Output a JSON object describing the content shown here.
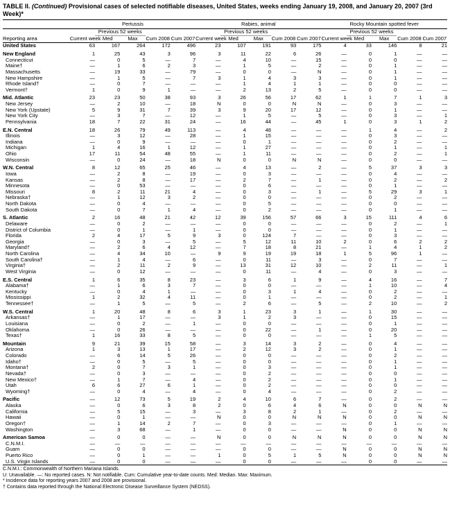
{
  "title_prefix": "TABLE II. ",
  "title_cont": "(Continued)",
  "title_rest": " Provisional cases of selected notifiable diseases, United States, weeks ending January 19, 2008, and January 20, 2007 (3rd Week)*",
  "diseases": [
    "Pertussis",
    "Rabies, animal",
    "Rocky Mountain spotted fever"
  ],
  "col_headers": {
    "area": "Reporting area",
    "current": "Current week",
    "previous": "Previous 52 weeks",
    "med": "Med",
    "max": "Max",
    "cum08": "Cum 2008",
    "cum07": "Cum 2007"
  },
  "footnotes": [
    "C.N.M.I.: Commonwealth of Northern Mariana Islands.",
    "U: Unavailable.     —: No reported cases.    N: Not notifiable.    Cum: Cumulative year-to-date counts.    Med: Median.    Max: Maximum.",
    "* Incidence data for reporting years 2007 and 2008 are provisional.",
    "† Contains data reported through the National Electronic Disease Surveillance System (NEDSS)."
  ],
  "dash": "—",
  "rows": [
    {
      "region": true,
      "area": "United States",
      "c": [
        "63",
        "167",
        "264",
        "172",
        "496",
        "23",
        "107",
        "191",
        "93",
        "175",
        "4",
        "33",
        "146",
        "8",
        "21"
      ]
    },
    {
      "region": true,
      "area": "New England",
      "c": [
        "1",
        "25",
        "43",
        "3",
        "96",
        "3",
        "11",
        "22",
        "6",
        "26",
        "—",
        "0",
        "1",
        "—",
        "—"
      ]
    },
    {
      "area": "Connecticut",
      "c": [
        "—",
        "0",
        "5",
        "—",
        "7",
        "—",
        "4",
        "10",
        "—",
        "15",
        "—",
        "0",
        "0",
        "—",
        "—"
      ]
    },
    {
      "area": "Maine†",
      "c": [
        "—",
        "1",
        "6",
        "2",
        "3",
        "—",
        "1",
        "5",
        "—",
        "2",
        "—",
        "0",
        "1",
        "—",
        "—"
      ]
    },
    {
      "area": "Massachusetts",
      "c": [
        "—",
        "19",
        "33",
        "—",
        "79",
        "—",
        "0",
        "0",
        "—",
        "N",
        "—",
        "0",
        "1",
        "—",
        "—"
      ]
    },
    {
      "area": "New Hampshire",
      "c": [
        "—",
        "1",
        "5",
        "—",
        "7",
        "3",
        "1",
        "4",
        "3",
        "3",
        "—",
        "0",
        "1",
        "—",
        "—"
      ]
    },
    {
      "area": "Rhode Island†",
      "c": [
        "—",
        "0",
        "7",
        "—",
        "—",
        "—",
        "1",
        "4",
        "1",
        "1",
        "—",
        "0",
        "0",
        "—",
        "—"
      ]
    },
    {
      "area": "Vermont†",
      "c": [
        "1",
        "0",
        "9",
        "1",
        "—",
        "—",
        "2",
        "13",
        "2",
        "5",
        "—",
        "0",
        "0",
        "—",
        "—"
      ]
    },
    {
      "region": true,
      "area": "Mid. Atlantic",
      "c": [
        "23",
        "23",
        "50",
        "38",
        "93",
        "3",
        "26",
        "56",
        "17",
        "62",
        "1",
        "1",
        "7",
        "1",
        "3"
      ]
    },
    {
      "area": "New Jersey",
      "c": [
        "—",
        "2",
        "10",
        "—",
        "18",
        "N",
        "0",
        "0",
        "N",
        "N",
        "—",
        "0",
        "3",
        "—",
        "—"
      ]
    },
    {
      "area": "New York (Upstate)",
      "c": [
        "5",
        "9",
        "31",
        "7",
        "39",
        "3",
        "9",
        "20",
        "17",
        "12",
        "—",
        "0",
        "1",
        "—",
        "—"
      ]
    },
    {
      "area": "New York City",
      "c": [
        "—",
        "3",
        "7",
        "—",
        "12",
        "—",
        "1",
        "5",
        "—",
        "5",
        "—",
        "0",
        "3",
        "—",
        "1"
      ]
    },
    {
      "area": "Pennsylvania",
      "c": [
        "18",
        "7",
        "22",
        "31",
        "24",
        "—",
        "16",
        "44",
        "—",
        "45",
        "1",
        "0",
        "3",
        "1",
        "2"
      ]
    },
    {
      "region": true,
      "area": "E.N. Central",
      "c": [
        "18",
        "26",
        "79",
        "49",
        "113",
        "—",
        "4",
        "48",
        "—",
        "—",
        "—",
        "1",
        "4",
        "—",
        "2"
      ]
    },
    {
      "area": "Illinois",
      "c": [
        "—",
        "3",
        "12",
        "—",
        "28",
        "—",
        "1",
        "15",
        "—",
        "—",
        "—",
        "0",
        "3",
        "—",
        "—"
      ]
    },
    {
      "area": "Indiana",
      "c": [
        "—",
        "0",
        "9",
        "—",
        "—",
        "—",
        "0",
        "1",
        "—",
        "—",
        "—",
        "0",
        "2",
        "—",
        "—"
      ]
    },
    {
      "area": "Michigan",
      "c": [
        "1",
        "4",
        "16",
        "1",
        "12",
        "—",
        "1",
        "27",
        "—",
        "—",
        "—",
        "0",
        "1",
        "—",
        "1"
      ]
    },
    {
      "area": "Ohio",
      "c": [
        "17",
        "11",
        "54",
        "48",
        "55",
        "—",
        "1",
        "11",
        "—",
        "—",
        "—",
        "0",
        "2",
        "—",
        "1"
      ]
    },
    {
      "area": "Wisconsin",
      "c": [
        "—",
        "0",
        "24",
        "—",
        "18",
        "N",
        "0",
        "0",
        "N",
        "N",
        "—",
        "0",
        "0",
        "—",
        "—"
      ]
    },
    {
      "region": true,
      "area": "W.N. Central",
      "c": [
        "8",
        "12",
        "65",
        "25",
        "46",
        "—",
        "4",
        "13",
        "—",
        "2",
        "—",
        "5",
        "37",
        "3",
        "3"
      ]
    },
    {
      "area": "Iowa",
      "c": [
        "—",
        "2",
        "8",
        "—",
        "19",
        "—",
        "0",
        "3",
        "—",
        "—",
        "—",
        "0",
        "4",
        "—",
        "—"
      ]
    },
    {
      "area": "Kansas",
      "c": [
        "—",
        "2",
        "8",
        "—",
        "17",
        "—",
        "2",
        "7",
        "—",
        "1",
        "—",
        "0",
        "2",
        "—",
        "2"
      ]
    },
    {
      "area": "Minnesota",
      "c": [
        "—",
        "0",
        "53",
        "—",
        "—",
        "—",
        "0",
        "6",
        "—",
        "—",
        "—",
        "0",
        "1",
        "—",
        "—"
      ]
    },
    {
      "area": "Missouri",
      "c": [
        "8",
        "2",
        "11",
        "21",
        "4",
        "—",
        "0",
        "3",
        "—",
        "1",
        "—",
        "5",
        "29",
        "3",
        "1"
      ]
    },
    {
      "area": "Nebraska†",
      "c": [
        "—",
        "1",
        "12",
        "3",
        "2",
        "—",
        "0",
        "0",
        "—",
        "—",
        "—",
        "0",
        "2",
        "—",
        "—"
      ]
    },
    {
      "area": "North Dakota",
      "c": [
        "—",
        "0",
        "4",
        "—",
        "—",
        "—",
        "0",
        "5",
        "—",
        "—",
        "—",
        "0",
        "0",
        "—",
        "—"
      ]
    },
    {
      "area": "South Dakota",
      "c": [
        "—",
        "0",
        "7",
        "1",
        "4",
        "—",
        "0",
        "2",
        "—",
        "—",
        "—",
        "0",
        "1",
        "—",
        "—"
      ]
    },
    {
      "region": true,
      "area": "S. Atlantic",
      "c": [
        "2",
        "16",
        "48",
        "21",
        "42",
        "12",
        "39",
        "156",
        "57",
        "66",
        "3",
        "15",
        "111",
        "4",
        "6"
      ]
    },
    {
      "area": "Delaware",
      "c": [
        "—",
        "0",
        "2",
        "—",
        "—",
        "—",
        "0",
        "0",
        "—",
        "—",
        "—",
        "0",
        "2",
        "—",
        "1"
      ]
    },
    {
      "area": "District of Columbia",
      "c": [
        "—",
        "0",
        "1",
        "—",
        "1",
        "—",
        "0",
        "0",
        "—",
        "—",
        "—",
        "0",
        "1",
        "—",
        "—"
      ]
    },
    {
      "area": "Florida",
      "c": [
        "2",
        "4",
        "17",
        "5",
        "9",
        "3",
        "0",
        "124",
        "7",
        "—",
        "—",
        "0",
        "3",
        "—",
        "—"
      ]
    },
    {
      "area": "Georgia",
      "c": [
        "—",
        "0",
        "3",
        "—",
        "5",
        "—",
        "5",
        "12",
        "11",
        "10",
        "2",
        "0",
        "6",
        "2",
        "2"
      ]
    },
    {
      "area": "Maryland†",
      "c": [
        "—",
        "2",
        "6",
        "4",
        "12",
        "—",
        "7",
        "18",
        "8",
        "21",
        "—",
        "1",
        "4",
        "1",
        "2"
      ]
    },
    {
      "area": "North Carolina",
      "c": [
        "—",
        "4",
        "34",
        "10",
        "—",
        "9",
        "9",
        "19",
        "19",
        "18",
        "1",
        "5",
        "96",
        "1",
        "—"
      ]
    },
    {
      "area": "South Carolina†",
      "c": [
        "—",
        "1",
        "4",
        "—",
        "6",
        "—",
        "0",
        "11",
        "—",
        "3",
        "—",
        "0",
        "7",
        "—",
        "—"
      ]
    },
    {
      "area": "Virginia†",
      "c": [
        "—",
        "2",
        "11",
        "2",
        "9",
        "—",
        "13",
        "31",
        "12",
        "10",
        "—",
        "2",
        "11",
        "—",
        "1"
      ]
    },
    {
      "area": "West Virginia",
      "c": [
        "—",
        "0",
        "12",
        "—",
        "—",
        "—",
        "0",
        "11",
        "—",
        "4",
        "—",
        "0",
        "3",
        "—",
        "—"
      ]
    },
    {
      "region": true,
      "area": "E.S. Central",
      "c": [
        "1",
        "6",
        "35",
        "8",
        "23",
        "—",
        "3",
        "6",
        "1",
        "9",
        "—",
        "4",
        "16",
        "—",
        "7"
      ]
    },
    {
      "area": "Alabama†",
      "c": [
        "—",
        "1",
        "6",
        "3",
        "7",
        "—",
        "0",
        "0",
        "—",
        "—",
        "—",
        "1",
        "10",
        "—",
        "4"
      ]
    },
    {
      "area": "Kentucky",
      "c": [
        "—",
        "0",
        "4",
        "1",
        "—",
        "—",
        "0",
        "3",
        "1",
        "4",
        "—",
        "0",
        "2",
        "—",
        "—"
      ]
    },
    {
      "area": "Mississippi",
      "c": [
        "1",
        "2",
        "32",
        "4",
        "11",
        "—",
        "0",
        "1",
        "—",
        "—",
        "—",
        "0",
        "2",
        "—",
        "1"
      ]
    },
    {
      "area": "Tennessee†",
      "c": [
        "—",
        "1",
        "5",
        "—",
        "5",
        "—",
        "2",
        "6",
        "—",
        "5",
        "—",
        "2",
        "10",
        "—",
        "2"
      ]
    },
    {
      "region": true,
      "area": "W.S. Central",
      "c": [
        "1",
        "20",
        "48",
        "8",
        "6",
        "3",
        "1",
        "23",
        "3",
        "1",
        "—",
        "1",
        "30",
        "—",
        "—"
      ]
    },
    {
      "area": "Arkansas†",
      "c": [
        "—",
        "1",
        "17",
        "—",
        "—",
        "3",
        "1",
        "2",
        "3",
        "—",
        "—",
        "0",
        "15",
        "—",
        "—"
      ]
    },
    {
      "area": "Louisiana",
      "c": [
        "—",
        "0",
        "2",
        "—",
        "1",
        "—",
        "0",
        "0",
        "—",
        "—",
        "—",
        "0",
        "1",
        "—",
        "—"
      ]
    },
    {
      "area": "Oklahoma",
      "c": [
        "—",
        "0",
        "26",
        "—",
        "—",
        "—",
        "0",
        "22",
        "—",
        "1",
        "—",
        "0",
        "20",
        "—",
        "—"
      ]
    },
    {
      "area": "Texas†",
      "c": [
        "1",
        "16",
        "33",
        "8",
        "5",
        "—",
        "0",
        "0",
        "—",
        "—",
        "—",
        "1",
        "5",
        "—",
        "—"
      ]
    },
    {
      "region": true,
      "area": "Mountain",
      "c": [
        "9",
        "21",
        "39",
        "15",
        "58",
        "—",
        "3",
        "14",
        "3",
        "2",
        "—",
        "0",
        "4",
        "—",
        "—"
      ]
    },
    {
      "area": "Arizona",
      "c": [
        "1",
        "3",
        "13",
        "1",
        "17",
        "—",
        "2",
        "12",
        "3",
        "2",
        "—",
        "0",
        "1",
        "—",
        "—"
      ]
    },
    {
      "area": "Colorado",
      "c": [
        "—",
        "6",
        "14",
        "5",
        "26",
        "—",
        "0",
        "0",
        "—",
        "—",
        "—",
        "0",
        "2",
        "—",
        "—"
      ]
    },
    {
      "area": "Idaho†",
      "c": [
        "—",
        "0",
        "5",
        "—",
        "5",
        "—",
        "0",
        "0",
        "—",
        "—",
        "—",
        "0",
        "1",
        "—",
        "—"
      ]
    },
    {
      "area": "Montana†",
      "c": [
        "2",
        "0",
        "7",
        "3",
        "1",
        "—",
        "0",
        "3",
        "—",
        "—",
        "—",
        "0",
        "1",
        "—",
        "—"
      ]
    },
    {
      "area": "Nevada†",
      "c": [
        "—",
        "0",
        "3",
        "—",
        "—",
        "—",
        "0",
        "2",
        "—",
        "—",
        "—",
        "0",
        "0",
        "—",
        "—"
      ]
    },
    {
      "area": "New Mexico†",
      "c": [
        "—",
        "1",
        "7",
        "—",
        "4",
        "—",
        "0",
        "2",
        "—",
        "—",
        "—",
        "0",
        "1",
        "—",
        "—"
      ]
    },
    {
      "area": "Utah",
      "c": [
        "6",
        "6",
        "27",
        "6",
        "1",
        "—",
        "0",
        "2",
        "—",
        "—",
        "—",
        "0",
        "0",
        "—",
        "—"
      ]
    },
    {
      "area": "Wyoming†",
      "c": [
        "—",
        "0",
        "4",
        "—",
        "4",
        "—",
        "0",
        "4",
        "—",
        "—",
        "—",
        "0",
        "2",
        "—",
        "—"
      ]
    },
    {
      "region": true,
      "area": "Pacific",
      "c": [
        "—",
        "12",
        "73",
        "5",
        "19",
        "2",
        "4",
        "10",
        "6",
        "7",
        "—",
        "0",
        "2",
        "—",
        "—"
      ]
    },
    {
      "area": "Alaska",
      "c": [
        "—",
        "0",
        "6",
        "3",
        "8",
        "2",
        "0",
        "6",
        "4",
        "6",
        "N",
        "0",
        "0",
        "N",
        "N"
      ]
    },
    {
      "area": "California",
      "c": [
        "—",
        "5",
        "15",
        "—",
        "3",
        "—",
        "3",
        "8",
        "2",
        "1",
        "—",
        "0",
        "2",
        "—",
        "—"
      ]
    },
    {
      "area": "Hawaii",
      "c": [
        "—",
        "0",
        "1",
        "—",
        "—",
        "N",
        "0",
        "0",
        "N",
        "N",
        "N",
        "0",
        "0",
        "N",
        "N"
      ]
    },
    {
      "area": "Oregon†",
      "c": [
        "—",
        "1",
        "14",
        "2",
        "7",
        "—",
        "0",
        "3",
        "—",
        "—",
        "—",
        "0",
        "1",
        "—",
        "—"
      ]
    },
    {
      "area": "Washington",
      "c": [
        "—",
        "3",
        "68",
        "—",
        "1",
        "—",
        "0",
        "0",
        "—",
        "—",
        "N",
        "0",
        "0",
        "N",
        "N"
      ]
    },
    {
      "region": true,
      "area": "American Samoa",
      "c": [
        "—",
        "0",
        "0",
        "—",
        "—",
        "N",
        "0",
        "0",
        "N",
        "N",
        "N",
        "0",
        "0",
        "N",
        "N"
      ]
    },
    {
      "area": "C.N.M.I.",
      "c": [
        "—",
        "—",
        "—",
        "—",
        "—",
        "—",
        "—",
        "—",
        "—",
        "—",
        "—",
        "—",
        "—",
        "—",
        "—"
      ]
    },
    {
      "area": "Guam",
      "c": [
        "—",
        "0",
        "0",
        "—",
        "—",
        "—",
        "0",
        "0",
        "—",
        "—",
        "N",
        "0",
        "0",
        "N",
        "N"
      ]
    },
    {
      "area": "Puerto Rico",
      "c": [
        "—",
        "0",
        "1",
        "—",
        "—",
        "1",
        "0",
        "5",
        "1",
        "5",
        "N",
        "0",
        "0",
        "N",
        "N"
      ]
    },
    {
      "area": "U.S. Virgin Islands",
      "c": [
        "—",
        "0",
        "0",
        "—",
        "—",
        "—",
        "0",
        "0",
        "—",
        "—",
        "—",
        "0",
        "0",
        "—",
        "—"
      ]
    }
  ]
}
